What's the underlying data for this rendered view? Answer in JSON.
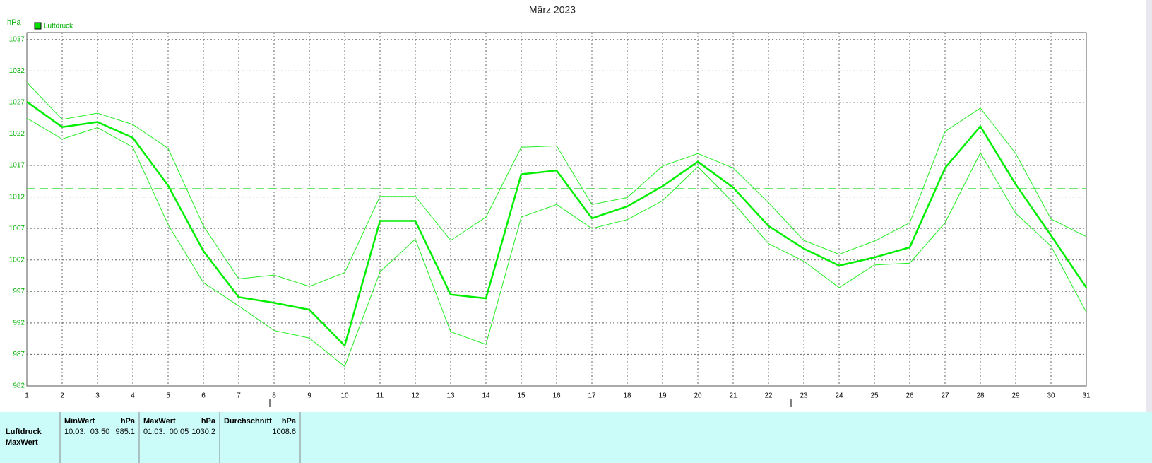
{
  "chart_data": {
    "type": "line",
    "title": "März 2023",
    "y_unit": "hPa",
    "legend": "Luftdruck",
    "legend_color": "#00dd00",
    "x": [
      1,
      2,
      3,
      4,
      5,
      6,
      7,
      8,
      9,
      10,
      11,
      12,
      13,
      14,
      15,
      16,
      17,
      18,
      19,
      20,
      21,
      22,
      23,
      24,
      25,
      26,
      27,
      28,
      29,
      30,
      31
    ],
    "xlim": [
      1,
      31
    ],
    "xticks": [
      1,
      2,
      3,
      4,
      5,
      6,
      7,
      8,
      9,
      10,
      11,
      12,
      13,
      14,
      15,
      16,
      17,
      18,
      19,
      20,
      21,
      22,
      23,
      24,
      25,
      26,
      27,
      28,
      29,
      30,
      31
    ],
    "ylim": [
      982,
      1038.1
    ],
    "yticks": [
      982,
      987,
      992,
      997,
      1002,
      1007,
      1012,
      1017,
      1022,
      1027,
      1032,
      1037
    ],
    "grid": true,
    "mean_line": 1013.3,
    "mean_color": "#44dd44",
    "series": [
      {
        "name": "Luftdruck",
        "color": "#00ee00",
        "width": 2.5,
        "values": [
          1027.1,
          1023.1,
          1023.9,
          1021.4,
          1013.8,
          1003.4,
          996.1,
          995.2,
          994.1,
          988.4,
          1008.2,
          1008.2,
          996.5,
          995.9,
          1015.6,
          1016.2,
          1008.6,
          1010.5,
          1013.7,
          1017.6,
          1013.5,
          1007.4,
          1003.8,
          1001.1,
          1002.4,
          1004.0,
          1016.6,
          1023.2,
          1014.0,
          1005.9,
          997.6
        ]
      },
      {
        "color": "#22ee22",
        "width": 1,
        "values": [
          1030.2,
          1024.3,
          1025.3,
          1023.5,
          1019.7,
          1007.4,
          999.0,
          999.6,
          997.8,
          1000.0,
          1012.1,
          1012.1,
          1005.1,
          1008.8,
          1019.9,
          1020.1,
          1010.8,
          1011.9,
          1016.9,
          1018.9,
          1016.6,
          1011.1,
          1005.1,
          1002.9,
          1005.0,
          1007.9,
          1022.4,
          1026.1,
          1018.9,
          1008.5,
          1005.7
        ]
      },
      {
        "color": "#22ee22",
        "width": 1,
        "values": [
          1024.5,
          1021.2,
          1023.0,
          1019.9,
          1007.6,
          998.4,
          994.7,
          990.8,
          989.6,
          985.1,
          1000.1,
          1005.3,
          990.6,
          988.6,
          1008.8,
          1010.8,
          1007.0,
          1008.4,
          1011.4,
          1016.8,
          1011.1,
          1004.6,
          1001.8,
          997.6,
          1001.2,
          1001.5,
          1007.9,
          1019.0,
          1009.4,
          1004.2,
          993.7
        ]
      }
    ]
  },
  "table": {
    "row_labels": [
      "Luftdruck",
      "MaxWert"
    ],
    "columns": [
      {
        "header": "MinWert",
        "unit": "hPa",
        "time": "10.03.  03:50",
        "value": 985.1
      },
      {
        "header": "MaxWert",
        "unit": "hPa",
        "time": "01.03.  00:05",
        "value": 1030.2
      },
      {
        "header": "Durchschnitt",
        "unit": "hPa",
        "value": 1008.6
      }
    ]
  }
}
